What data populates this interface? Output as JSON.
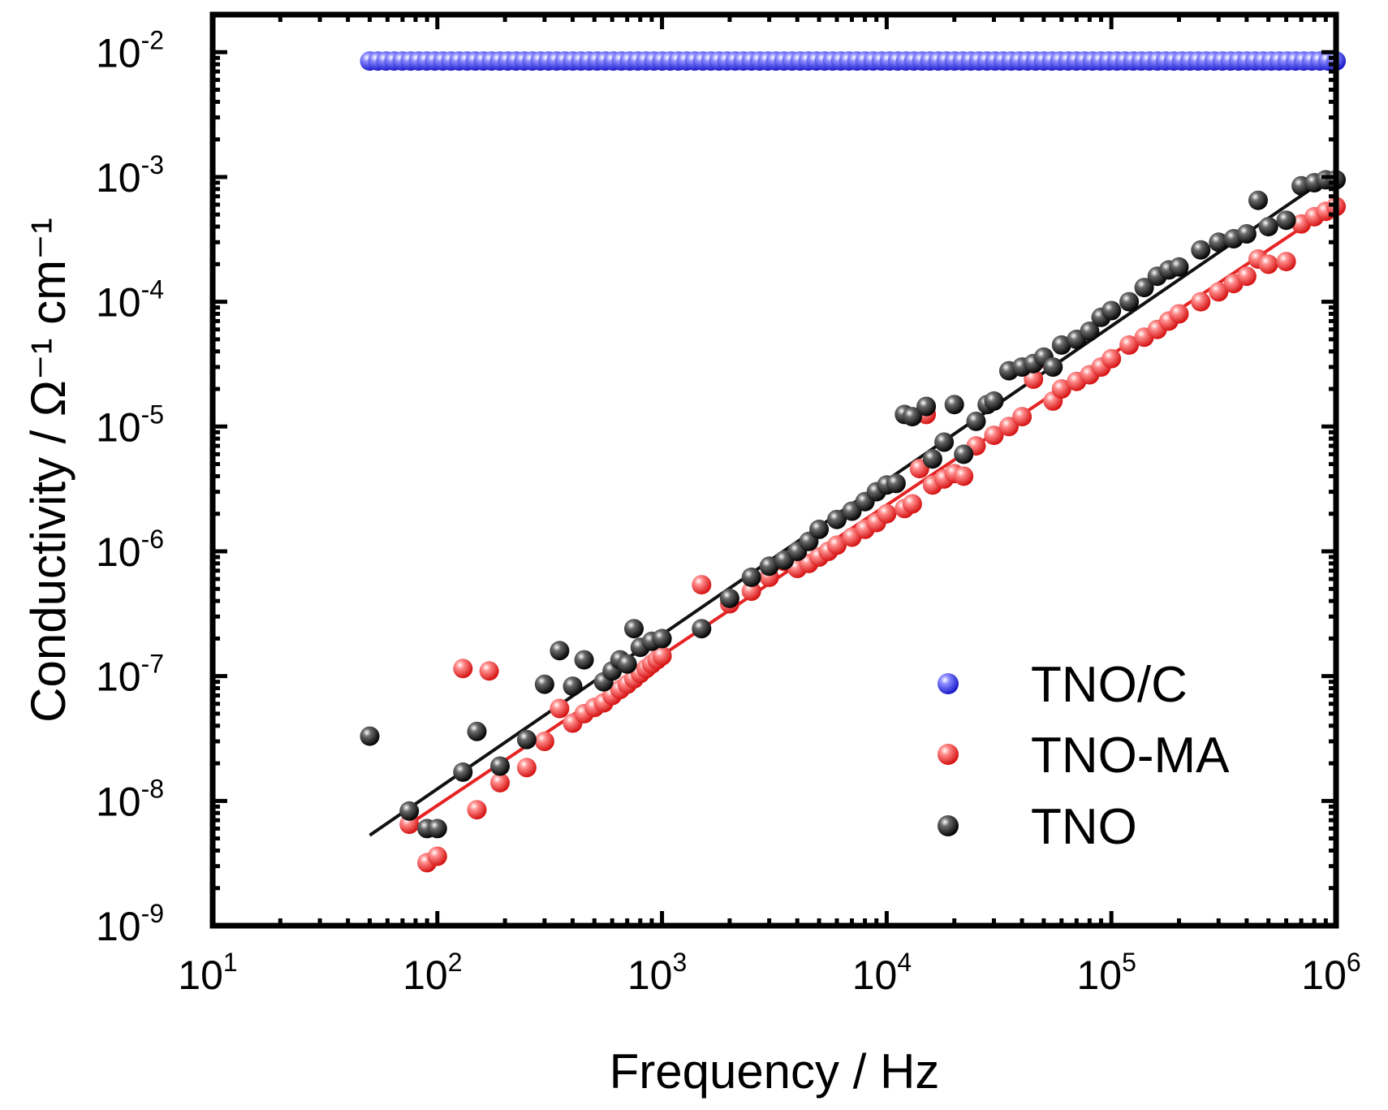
{
  "chart_data": {
    "type": "scatter",
    "xscale": "log",
    "yscale": "log",
    "xlim": [
      10,
      1000000
    ],
    "ylim": [
      1e-09,
      0.02
    ],
    "xlabel": "Frequency / Hz",
    "ylabel": "Conductivity / Ω⁻¹ cm⁻¹",
    "x_ticks": [
      {
        "base": "10",
        "exp": "1",
        "value": 10
      },
      {
        "base": "10",
        "exp": "2",
        "value": 100
      },
      {
        "base": "10",
        "exp": "3",
        "value": 1000
      },
      {
        "base": "10",
        "exp": "4",
        "value": 10000
      },
      {
        "base": "10",
        "exp": "5",
        "value": 100000
      },
      {
        "base": "10",
        "exp": "6",
        "value": 1000000
      }
    ],
    "y_ticks": [
      {
        "base": "10",
        "exp": "-9",
        "value": 1e-09
      },
      {
        "base": "10",
        "exp": "-8",
        "value": 1e-08
      },
      {
        "base": "10",
        "exp": "-7",
        "value": 1e-07
      },
      {
        "base": "10",
        "exp": "-6",
        "value": 1e-06
      },
      {
        "base": "10",
        "exp": "-5",
        "value": 1e-05
      },
      {
        "base": "10",
        "exp": "-4",
        "value": 0.0001
      },
      {
        "base": "10",
        "exp": "-3",
        "value": 0.001
      },
      {
        "base": "10",
        "exp": "-2",
        "value": 0.01
      }
    ],
    "legend_position": "bottom-right",
    "series": [
      {
        "name": "TNO/C",
        "color": "#2323e6",
        "line": true,
        "x_range": [
          50,
          1000000
        ],
        "y_constant": 0.0085,
        "n_points": 120
      },
      {
        "name": "TNO-MA",
        "color": "#e62323",
        "fit": {
          "x": [
            75,
            1000000
          ],
          "y": [
            6.5e-09,
            0.0006
          ]
        },
        "points": [
          [
            75,
            6.5e-09
          ],
          [
            90,
            3.2e-09
          ],
          [
            100,
            3.6e-09
          ],
          [
            130,
            1.15e-07
          ],
          [
            150,
            8.5e-09
          ],
          [
            170,
            1.1e-07
          ],
          [
            190,
            1.4e-08
          ],
          [
            250,
            1.85e-08
          ],
          [
            300,
            3e-08
          ],
          [
            350,
            5.5e-08
          ],
          [
            400,
            4.2e-08
          ],
          [
            450,
            5e-08
          ],
          [
            500,
            5.6e-08
          ],
          [
            550,
            6.1e-08
          ],
          [
            600,
            7e-08
          ],
          [
            650,
            7.8e-08
          ],
          [
            700,
            8.6e-08
          ],
          [
            750,
            9.5e-08
          ],
          [
            800,
            1.05e-07
          ],
          [
            850,
            1.15e-07
          ],
          [
            900,
            1.25e-07
          ],
          [
            950,
            1.35e-07
          ],
          [
            1000,
            1.45e-07
          ],
          [
            1500,
            5.4e-07
          ],
          [
            2000,
            3.8e-07
          ],
          [
            2500,
            4.8e-07
          ],
          [
            3000,
            6.2e-07
          ],
          [
            3500,
            8.3e-07
          ],
          [
            4000,
            7.3e-07
          ],
          [
            4500,
            8e-07
          ],
          [
            5000,
            9e-07
          ],
          [
            5500,
            1e-06
          ],
          [
            6000,
            1.12e-06
          ],
          [
            7000,
            1.3e-06
          ],
          [
            8000,
            1.5e-06
          ],
          [
            9000,
            1.7e-06
          ],
          [
            10000,
            2e-06
          ],
          [
            12000,
            2.2e-06
          ],
          [
            13000,
            2.4e-06
          ],
          [
            14000,
            4.6e-06
          ],
          [
            15000,
            1.25e-05
          ],
          [
            16000,
            3.4e-06
          ],
          [
            18000,
            3.8e-06
          ],
          [
            20000,
            4.2e-06
          ],
          [
            22000,
            4e-06
          ],
          [
            25000,
            7e-06
          ],
          [
            30000,
            8.5e-06
          ],
          [
            35000,
            1e-05
          ],
          [
            40000,
            1.2e-05
          ],
          [
            45000,
            2.4e-05
          ],
          [
            50000,
            3.5e-05
          ],
          [
            55000,
            1.6e-05
          ],
          [
            60000,
            2e-05
          ],
          [
            70000,
            2.3e-05
          ],
          [
            80000,
            2.6e-05
          ],
          [
            90000,
            3e-05
          ],
          [
            100000,
            3.5e-05
          ],
          [
            120000,
            4.5e-05
          ],
          [
            140000,
            5.2e-05
          ],
          [
            160000,
            6e-05
          ],
          [
            180000,
            7e-05
          ],
          [
            200000,
            8e-05
          ],
          [
            250000,
            0.0001
          ],
          [
            300000,
            0.00012
          ],
          [
            350000,
            0.00014
          ],
          [
            400000,
            0.00016
          ],
          [
            450000,
            0.00022
          ],
          [
            500000,
            0.0002
          ],
          [
            600000,
            0.00021
          ],
          [
            700000,
            0.00042
          ],
          [
            800000,
            0.00048
          ],
          [
            900000,
            0.00053
          ],
          [
            1000000,
            0.00058
          ]
        ]
      },
      {
        "name": "TNO",
        "color": "#111111",
        "fit": {
          "x": [
            50,
            1000000
          ],
          "y": [
            5.3e-09,
            0.0011
          ]
        },
        "points": [
          [
            50,
            3.3e-08
          ],
          [
            75,
            8.3e-09
          ],
          [
            90,
            6e-09
          ],
          [
            100,
            6e-09
          ],
          [
            130,
            1.7e-08
          ],
          [
            150,
            3.6e-08
          ],
          [
            190,
            1.9e-08
          ],
          [
            250,
            3.1e-08
          ],
          [
            300,
            8.6e-08
          ],
          [
            350,
            1.6e-07
          ],
          [
            400,
            8.3e-08
          ],
          [
            450,
            1.35e-07
          ],
          [
            550,
            9e-08
          ],
          [
            600,
            1.1e-07
          ],
          [
            650,
            1.35e-07
          ],
          [
            700,
            1.25e-07
          ],
          [
            750,
            2.4e-07
          ],
          [
            800,
            1.7e-07
          ],
          [
            900,
            1.9e-07
          ],
          [
            1000,
            2e-07
          ],
          [
            1500,
            2.4e-07
          ],
          [
            2000,
            4.2e-07
          ],
          [
            2500,
            6.2e-07
          ],
          [
            3000,
            7.6e-07
          ],
          [
            3500,
            8.5e-07
          ],
          [
            4000,
            1e-06
          ],
          [
            4500,
            1.2e-06
          ],
          [
            5000,
            1.5e-06
          ],
          [
            6000,
            1.8e-06
          ],
          [
            7000,
            2.1e-06
          ],
          [
            8000,
            2.5e-06
          ],
          [
            9000,
            3e-06
          ],
          [
            10000,
            3.4e-06
          ],
          [
            11000,
            3.5e-06
          ],
          [
            12000,
            1.25e-05
          ],
          [
            13000,
            1.2e-05
          ],
          [
            15000,
            1.45e-05
          ],
          [
            16000,
            5.5e-06
          ],
          [
            18000,
            7.5e-06
          ],
          [
            20000,
            1.5e-05
          ],
          [
            22000,
            6e-06
          ],
          [
            25000,
            1.1e-05
          ],
          [
            28000,
            1.5e-05
          ],
          [
            30000,
            1.6e-05
          ],
          [
            35000,
            2.8e-05
          ],
          [
            40000,
            3e-05
          ],
          [
            45000,
            3.2e-05
          ],
          [
            50000,
            3.6e-05
          ],
          [
            55000,
            3e-05
          ],
          [
            60000,
            4.5e-05
          ],
          [
            70000,
            5e-05
          ],
          [
            80000,
            5.8e-05
          ],
          [
            90000,
            7.5e-05
          ],
          [
            100000,
            8.5e-05
          ],
          [
            120000,
            0.0001
          ],
          [
            140000,
            0.00013
          ],
          [
            160000,
            0.00016
          ],
          [
            180000,
            0.00018
          ],
          [
            200000,
            0.00019
          ],
          [
            250000,
            0.00026
          ],
          [
            300000,
            0.0003
          ],
          [
            350000,
            0.00032
          ],
          [
            400000,
            0.00035
          ],
          [
            450000,
            0.00065
          ],
          [
            500000,
            0.0004
          ],
          [
            600000,
            0.00045
          ],
          [
            700000,
            0.00085
          ],
          [
            800000,
            0.0009
          ],
          [
            900000,
            0.00095
          ],
          [
            1000000,
            0.00095
          ]
        ]
      }
    ]
  }
}
